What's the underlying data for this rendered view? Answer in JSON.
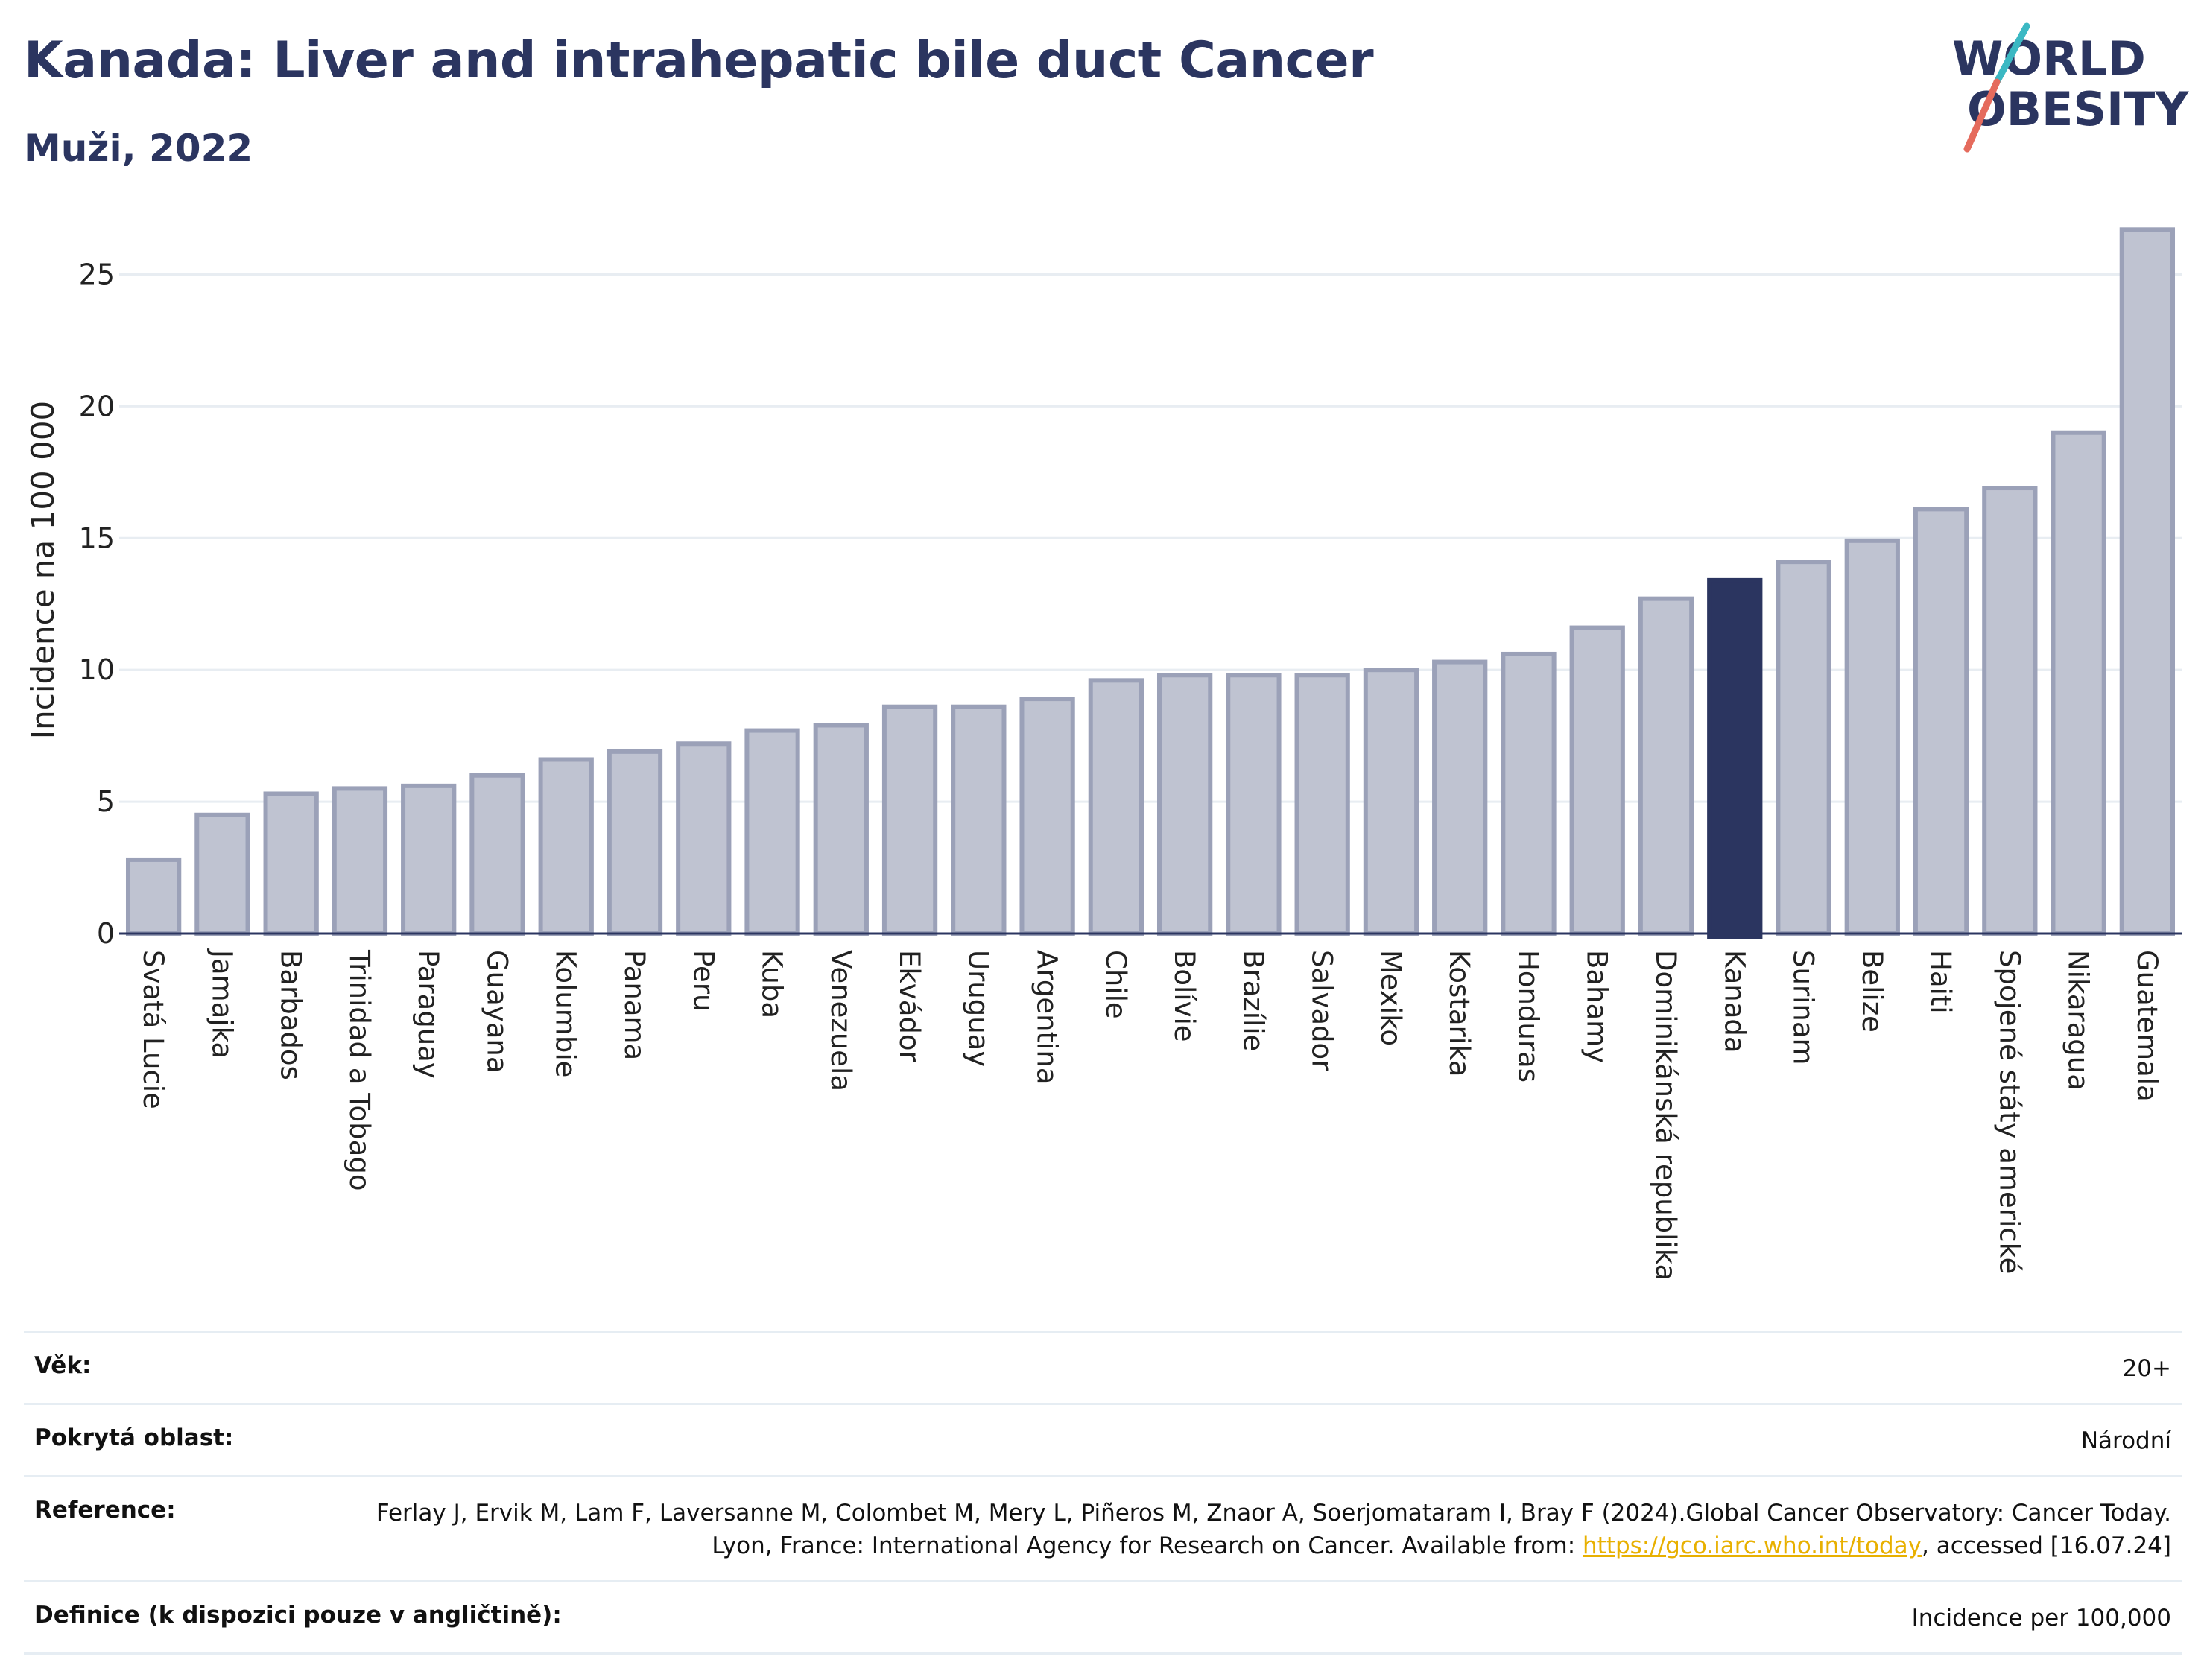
{
  "header": {
    "title": "Kanada: Liver and intrahepatic bile duct Cancer",
    "subtitle": "Muži, 2022"
  },
  "logo": {
    "line1": "WORLD",
    "line2": "OBESITY"
  },
  "chart_data": {
    "type": "bar",
    "title": "Kanada: Liver and intrahepatic bile duct Cancer",
    "subtitle": "Muži, 2022",
    "ylabel": "Incidence na 100 000",
    "xlabel": "",
    "ylim": [
      0,
      27.5
    ],
    "yticks": [
      0,
      5,
      10,
      15,
      20,
      25
    ],
    "grid": true,
    "highlight": "Kanada",
    "colors": {
      "bar": "#bfc3d1",
      "bar_border": "#9ba1b8",
      "highlight": "#2b3560"
    },
    "categories": [
      "Svatá Lucie",
      "Jamajka",
      "Barbados",
      "Trinidad a Tobago",
      "Paraguay",
      "Guayana",
      "Kolumbie",
      "Panama",
      "Peru",
      "Kuba",
      "Venezuela",
      "Ekvádor",
      "Uruguay",
      "Argentina",
      "Chile",
      "Bolívie",
      "Brazílie",
      "Salvador",
      "Mexiko",
      "Kostarika",
      "Honduras",
      "Bahamy",
      "Dominikánská republika",
      "Kanada",
      "Surinam",
      "Belize",
      "Haiti",
      "Spojené státy americké",
      "Nikaragua",
      "Guatemala"
    ],
    "values": [
      2.8,
      4.5,
      5.3,
      5.5,
      5.6,
      6.0,
      6.6,
      6.9,
      7.2,
      7.7,
      7.9,
      8.6,
      8.6,
      8.9,
      9.6,
      9.8,
      9.8,
      9.8,
      10.0,
      10.3,
      10.6,
      11.6,
      12.7,
      13.4,
      14.1,
      14.9,
      16.1,
      16.9,
      19.0,
      26.7
    ]
  },
  "info": {
    "rows": [
      {
        "label": "Věk:",
        "value": "20+"
      },
      {
        "label": "Pokrytá oblast:",
        "value": "Národní"
      },
      {
        "label": "Reference:",
        "value_parts": {
          "pre": "Ferlay J, Ervik M, Lam F, Laversanne M, Colombet M, Mery L, Piñeros M, Znaor A, Soerjomataram I, Bray F (2024).Global Cancer Observatory: Cancer Today. Lyon, France: International Agency for Research on Cancer. Available from: ",
          "link": "https://gco.iarc.who.int/today",
          "post": ", accessed [16.07.24]"
        }
      },
      {
        "label": "Definice (k dispozici pouze v angličtině):",
        "value": "Incidence per 100,000"
      }
    ]
  }
}
